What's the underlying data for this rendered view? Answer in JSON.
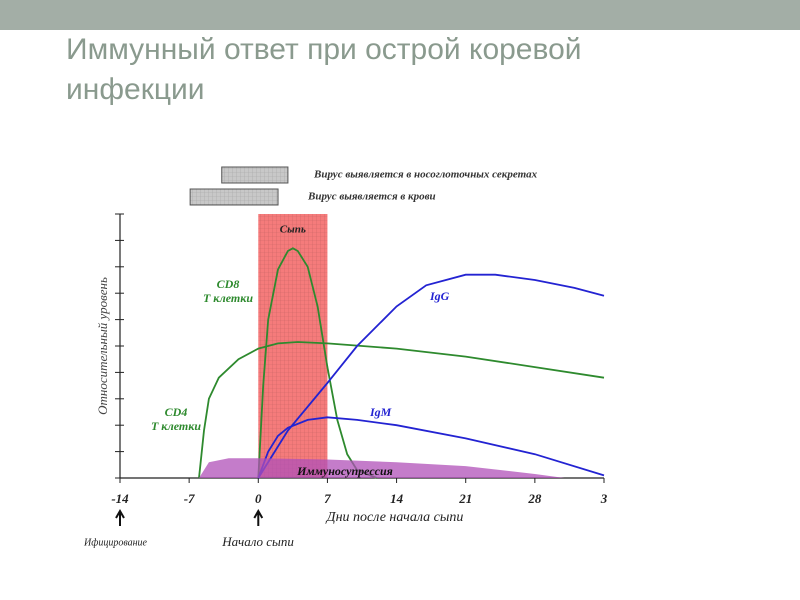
{
  "chart_data": {
    "type": "line",
    "title": "Иммунный ответ при острой коревой инфекции",
    "xlabel": "Дни после начала сыпи",
    "ylabel": "Относительный уровень",
    "xlim": [
      -14,
      35
    ],
    "xticks": [
      -14,
      -7,
      0,
      7,
      14,
      21,
      28,
      {
        "value": 35,
        "label": "3"
      }
    ],
    "ylim": [
      0,
      10
    ],
    "yticks": [
      0,
      1,
      2,
      3,
      4,
      5,
      6,
      7,
      8,
      9,
      10
    ],
    "series": [
      {
        "name": "CD8\nТ клетки",
        "color": "#2e8a2e",
        "x": [
          0,
          0.5,
          1,
          2,
          3,
          3.5,
          4,
          5,
          6,
          7,
          8,
          9,
          10,
          12
        ],
        "values": [
          0,
          3.5,
          6,
          7.9,
          8.6,
          8.7,
          8.6,
          8.0,
          6.5,
          4.2,
          2.2,
          0.9,
          0.3,
          0
        ]
      },
      {
        "name": "CD4\nТ клетки",
        "color": "#2e8a2e",
        "x": [
          -6,
          -5.5,
          -5,
          -4,
          -2,
          0,
          2,
          4,
          7,
          14,
          21,
          28,
          35
        ],
        "values": [
          0,
          1.8,
          3.0,
          3.8,
          4.5,
          4.9,
          5.1,
          5.15,
          5.1,
          4.9,
          4.6,
          4.2,
          3.8
        ]
      },
      {
        "name": "IgG",
        "color": "#2323d2",
        "x": [
          0,
          3,
          7,
          10,
          14,
          17,
          21,
          24,
          28,
          32,
          35
        ],
        "values": [
          0,
          1.8,
          3.6,
          5.0,
          6.5,
          7.3,
          7.7,
          7.7,
          7.5,
          7.2,
          6.9
        ]
      },
      {
        "name": "IgM",
        "color": "#2323d2",
        "x": [
          0,
          1,
          2,
          3,
          5,
          7,
          10,
          14,
          21,
          28,
          35
        ],
        "values": [
          0,
          1.0,
          1.6,
          1.9,
          2.2,
          2.3,
          2.2,
          2.0,
          1.5,
          0.9,
          0.1
        ]
      },
      {
        "name": "Иммуносупрессия",
        "color": "#b050b8",
        "area": true,
        "x": [
          -6,
          -5,
          -3,
          0,
          7,
          14,
          21,
          28,
          31
        ],
        "values": [
          0,
          0.6,
          0.75,
          0.75,
          0.7,
          0.6,
          0.45,
          0.15,
          0
        ]
      }
    ],
    "intervals": [
      {
        "label": "Вирус выявляется в носоглоточных секретах",
        "start": -3.7,
        "end": 3,
        "color": "#c8c8c8"
      },
      {
        "label": "Вирус выявляется в крови",
        "start": -6.9,
        "end": 2,
        "color": "#c8c8c8"
      },
      {
        "label": "Сыпь",
        "start": 0,
        "end": 7,
        "color": "#f25a5a"
      }
    ],
    "annotations": [
      {
        "text": "Ифицирование",
        "x": -14
      },
      {
        "text": "Начало сыпи",
        "x": 0
      }
    ]
  }
}
